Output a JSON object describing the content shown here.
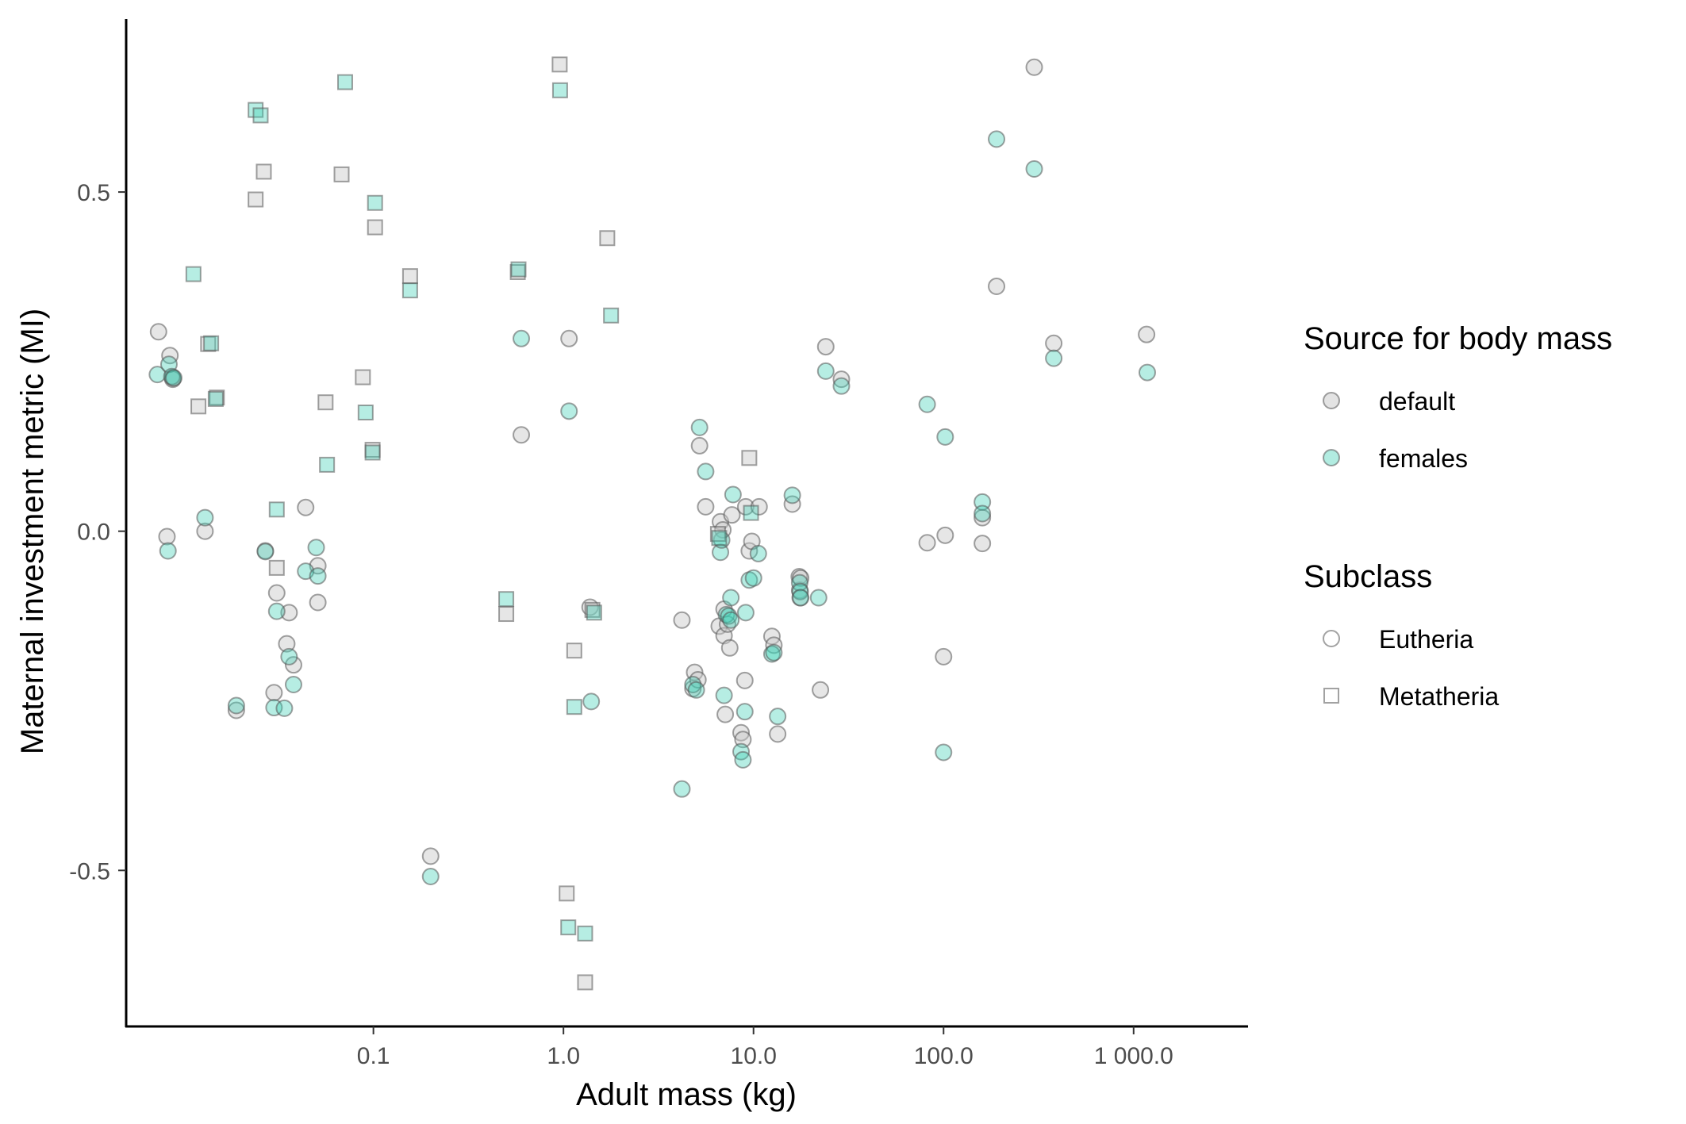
{
  "chart_data": {
    "type": "scatter",
    "xlabel": "Adult mass (kg)",
    "ylabel": "Maternal investment metric (MI)",
    "x_scale": "log10",
    "xlim": [
      0.005,
      4000
    ],
    "ylim": [
      -0.73,
      0.755
    ],
    "x_ticks": [
      {
        "value": 0.1,
        "label": "0.1"
      },
      {
        "value": 1,
        "label": "1.0"
      },
      {
        "value": 10,
        "label": "10.0"
      },
      {
        "value": 100,
        "label": "100.0"
      },
      {
        "value": 1000,
        "label": "1 000.0"
      }
    ],
    "y_ticks": [
      {
        "value": 0.5,
        "label": "0.5"
      },
      {
        "value": 0,
        "label": "0.0"
      },
      {
        "value": -0.5,
        "label": "-0.5"
      }
    ],
    "grid": false,
    "legend_placement": "right",
    "legends": [
      {
        "title": "Source for body mass",
        "items": [
          {
            "label": "default",
            "shape": "circle",
            "color": "#c8c8c8"
          },
          {
            "label": "females",
            "shape": "circle",
            "color": "#3fcfb5"
          }
        ]
      },
      {
        "title": "Subclass",
        "items": [
          {
            "label": "Eutheria",
            "shape": "circle",
            "color": "#ffffff"
          },
          {
            "label": "Metatheria",
            "shape": "square",
            "color": "#ffffff"
          }
        ]
      }
    ],
    "colors": {
      "default": "#c8c8c8",
      "females": "#3fcfb5",
      "stroke": "#555555"
    },
    "series": [
      {
        "source": "default",
        "subclass": "Eutheria",
        "points": [
          [
            0.0074,
            0.294
          ],
          [
            0.0085,
            0.259
          ],
          [
            0.0088,
            0.226
          ],
          [
            0.0088,
            0.224
          ],
          [
            0.0082,
            -0.008
          ],
          [
            0.013,
            0.0
          ],
          [
            0.019,
            -0.264
          ],
          [
            0.027,
            -0.029
          ],
          [
            0.03,
            -0.238
          ],
          [
            0.031,
            -0.091
          ],
          [
            0.035,
            -0.166
          ],
          [
            0.036,
            -0.12
          ],
          [
            0.038,
            -0.197
          ],
          [
            0.044,
            0.035
          ],
          [
            0.051,
            -0.051
          ],
          [
            0.051,
            -0.105
          ],
          [
            0.2,
            -0.479
          ],
          [
            0.6,
            0.142
          ],
          [
            1.07,
            0.284
          ],
          [
            1.38,
            -0.112
          ],
          [
            4.2,
            -0.131
          ],
          [
            4.8,
            -0.232
          ],
          [
            4.9,
            -0.208
          ],
          [
            5.1,
            -0.219
          ],
          [
            5.2,
            0.126
          ],
          [
            5.6,
            0.036
          ],
          [
            6.6,
            -0.14
          ],
          [
            6.7,
            0.014
          ],
          [
            6.9,
            0.002
          ],
          [
            7.0,
            -0.115
          ],
          [
            7.0,
            -0.154
          ],
          [
            7.1,
            -0.27
          ],
          [
            7.3,
            -0.137
          ],
          [
            7.5,
            -0.172
          ],
          [
            7.7,
            0.024
          ],
          [
            8.6,
            -0.297
          ],
          [
            8.8,
            -0.307
          ],
          [
            9.0,
            -0.22
          ],
          [
            9.1,
            0.036
          ],
          [
            9.5,
            -0.029
          ],
          [
            9.8,
            -0.015
          ],
          [
            10.7,
            0.036
          ],
          [
            12.5,
            -0.155
          ],
          [
            12.8,
            -0.168
          ],
          [
            13.4,
            -0.299
          ],
          [
            17.4,
            -0.067
          ],
          [
            17.5,
            -0.087
          ],
          [
            17.6,
            -0.098
          ],
          [
            17.7,
            -0.069
          ],
          [
            16.0,
            0.04
          ],
          [
            22.5,
            -0.234
          ],
          [
            24.0,
            0.272
          ],
          [
            29.0,
            0.224
          ],
          [
            82.0,
            -0.017
          ],
          [
            100.0,
            -0.185
          ],
          [
            102.0,
            -0.006
          ],
          [
            160.0,
            -0.018
          ],
          [
            160.0,
            0.02
          ],
          [
            190.0,
            0.361
          ],
          [
            300.0,
            0.684
          ],
          [
            380.0,
            0.277
          ],
          [
            1170.0,
            0.29
          ]
        ]
      },
      {
        "source": "females",
        "subclass": "Eutheria",
        "points": [
          [
            0.0073,
            0.231
          ],
          [
            0.0084,
            0.246
          ],
          [
            0.0087,
            0.228
          ],
          [
            0.0089,
            0.226
          ],
          [
            0.0083,
            -0.029
          ],
          [
            0.013,
            0.02
          ],
          [
            0.019,
            -0.257
          ],
          [
            0.027,
            -0.03
          ],
          [
            0.03,
            -0.26
          ],
          [
            0.031,
            -0.118
          ],
          [
            0.034,
            -0.261
          ],
          [
            0.036,
            -0.185
          ],
          [
            0.038,
            -0.226
          ],
          [
            0.044,
            -0.059
          ],
          [
            0.05,
            -0.024
          ],
          [
            0.051,
            -0.066
          ],
          [
            0.2,
            -0.509
          ],
          [
            0.6,
            0.284
          ],
          [
            1.07,
            0.177
          ],
          [
            1.4,
            -0.251
          ],
          [
            4.2,
            -0.38
          ],
          [
            4.8,
            -0.226
          ],
          [
            5.0,
            -0.234
          ],
          [
            5.2,
            0.153
          ],
          [
            5.6,
            0.088
          ],
          [
            6.7,
            -0.031
          ],
          [
            6.8,
            -0.013
          ],
          [
            7.0,
            -0.242
          ],
          [
            7.2,
            -0.123
          ],
          [
            7.4,
            -0.125
          ],
          [
            7.6,
            -0.131
          ],
          [
            7.6,
            -0.098
          ],
          [
            7.8,
            0.054
          ],
          [
            8.6,
            -0.325
          ],
          [
            8.8,
            -0.337
          ],
          [
            9.0,
            -0.266
          ],
          [
            9.1,
            -0.12
          ],
          [
            9.5,
            -0.072
          ],
          [
            10.0,
            -0.069
          ],
          [
            10.6,
            -0.033
          ],
          [
            12.5,
            -0.181
          ],
          [
            12.8,
            -0.179
          ],
          [
            13.4,
            -0.273
          ],
          [
            16.0,
            0.053
          ],
          [
            17.5,
            -0.076
          ],
          [
            17.6,
            -0.089
          ],
          [
            17.7,
            -0.098
          ],
          [
            22.0,
            -0.098
          ],
          [
            24.0,
            0.236
          ],
          [
            29.0,
            0.214
          ],
          [
            82.0,
            0.187
          ],
          [
            100.0,
            -0.326
          ],
          [
            102.0,
            0.139
          ],
          [
            160.0,
            0.043
          ],
          [
            160.0,
            0.026
          ],
          [
            190.0,
            0.578
          ],
          [
            300.0,
            0.534
          ],
          [
            380.0,
            0.255
          ],
          [
            1180.0,
            0.234
          ]
        ]
      },
      {
        "source": "default",
        "subclass": "Metatheria",
        "points": [
          [
            0.012,
            0.184
          ],
          [
            0.0135,
            0.276
          ],
          [
            0.015,
            0.197
          ],
          [
            0.024,
            0.489
          ],
          [
            0.0265,
            0.53
          ],
          [
            0.031,
            -0.054
          ],
          [
            0.056,
            0.19
          ],
          [
            0.068,
            0.526
          ],
          [
            0.088,
            0.227
          ],
          [
            0.099,
            0.12
          ],
          [
            0.102,
            0.448
          ],
          [
            0.156,
            0.376
          ],
          [
            0.5,
            -0.122
          ],
          [
            0.575,
            0.382
          ],
          [
            0.955,
            0.688
          ],
          [
            1.04,
            -0.534
          ],
          [
            1.14,
            -0.176
          ],
          [
            1.3,
            -0.665
          ],
          [
            1.42,
            -0.116
          ],
          [
            1.7,
            0.432
          ],
          [
            6.5,
            -0.004
          ],
          [
            9.5,
            0.108
          ]
        ]
      },
      {
        "source": "females",
        "subclass": "Metatheria",
        "points": [
          [
            0.0113,
            0.379
          ],
          [
            0.014,
            0.277
          ],
          [
            0.0148,
            0.195
          ],
          [
            0.024,
            0.621
          ],
          [
            0.0255,
            0.613
          ],
          [
            0.031,
            0.032
          ],
          [
            0.057,
            0.098
          ],
          [
            0.071,
            0.662
          ],
          [
            0.091,
            0.175
          ],
          [
            0.099,
            0.116
          ],
          [
            0.102,
            0.484
          ],
          [
            0.156,
            0.355
          ],
          [
            0.5,
            -0.1
          ],
          [
            0.58,
            0.386
          ],
          [
            0.96,
            0.65
          ],
          [
            1.06,
            -0.584
          ],
          [
            1.14,
            -0.259
          ],
          [
            1.3,
            -0.593
          ],
          [
            1.45,
            -0.12
          ],
          [
            1.78,
            0.318
          ],
          [
            6.6,
            -0.01
          ],
          [
            9.7,
            0.027
          ]
        ]
      }
    ]
  }
}
